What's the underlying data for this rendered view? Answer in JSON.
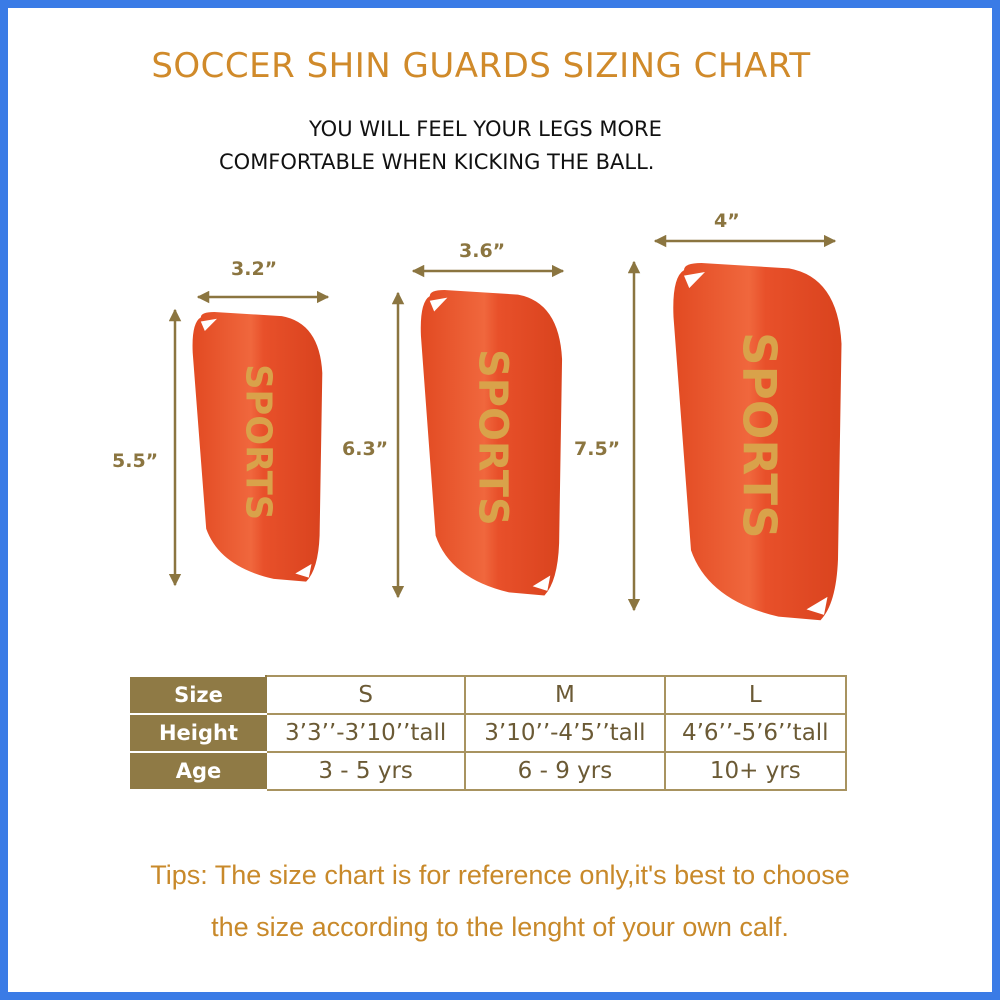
{
  "title": "SOCCER SHIN GUARDS SIZING CHART",
  "subtitle": [
    "YOU WILL FEEL YOUR LEGS MORE",
    "COMFORTABLE WHEN KICKING THE BALL."
  ],
  "guards": [
    {
      "size": "S",
      "width": "3.2”",
      "height": "5.5”",
      "brand": "SPORTS"
    },
    {
      "size": "M",
      "width": "3.6”",
      "height": "6.3”",
      "brand": "SPORTS"
    },
    {
      "size": "L",
      "width": "4”",
      "height": "7.5”",
      "brand": "SPORTS"
    }
  ],
  "table": {
    "rows": [
      {
        "header": "Size",
        "values": [
          "S",
          "M",
          "L"
        ]
      },
      {
        "header": "Height",
        "values": [
          "3’3’’-3’10’’tall",
          "3’10’’-4’5’’tall",
          "4’6’’-5’6’’tall"
        ]
      },
      {
        "header": "Age",
        "values": [
          "3 - 5 yrs",
          "6 - 9 yrs",
          "10+ yrs"
        ]
      }
    ]
  },
  "tips": [
    "Tips: The size chart is for reference only,it's best to choose",
    "the size according to the lenght of your own calf."
  ],
  "colors": {
    "border": "#3a7be6",
    "title": "#d08a2a",
    "gold": "#8b7540",
    "guard": "#e8502a",
    "tips": "#c8892a"
  }
}
